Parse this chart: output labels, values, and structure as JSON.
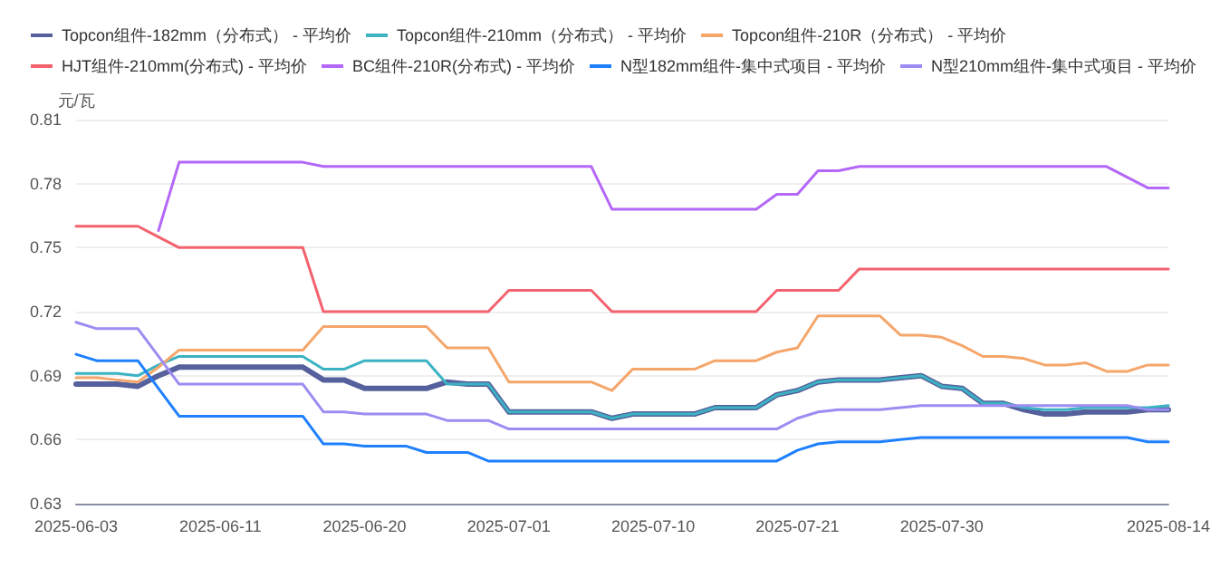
{
  "chart_data": {
    "type": "line",
    "ylabel": "元/瓦",
    "ylim": [
      0.63,
      0.81
    ],
    "yticks": [
      0.63,
      0.66,
      0.69,
      0.72,
      0.75,
      0.78,
      0.81
    ],
    "grid": "y",
    "legend": "top",
    "marker": "none",
    "line_style": "solid",
    "categories": [
      "2025-06-03",
      null,
      null,
      null,
      null,
      null,
      null,
      "2025-06-11",
      null,
      null,
      null,
      null,
      null,
      null,
      "2025-06-20",
      null,
      null,
      null,
      null,
      null,
      null,
      "2025-07-01",
      null,
      null,
      null,
      null,
      null,
      null,
      "2025-07-10",
      null,
      null,
      null,
      null,
      null,
      null,
      "2025-07-21",
      null,
      null,
      null,
      null,
      null,
      null,
      "2025-07-30",
      null,
      null,
      null,
      null,
      null,
      null,
      null,
      null,
      null,
      null,
      "2025-08-14"
    ],
    "series": [
      {
        "name": "Topcon组件-182mm（分布式） - 平均价",
        "color": "#55609c",
        "values": [
          0.686,
          0.686,
          0.686,
          0.685,
          0.69,
          0.694,
          0.694,
          0.694,
          0.694,
          0.694,
          0.694,
          0.694,
          0.688,
          0.688,
          0.684,
          0.684,
          0.684,
          0.684,
          0.687,
          0.686,
          0.686,
          0.673,
          0.673,
          0.673,
          0.673,
          0.673,
          0.67,
          0.672,
          0.672,
          0.672,
          0.672,
          0.675,
          0.675,
          0.675,
          0.681,
          0.683,
          0.687,
          0.688,
          0.688,
          0.688,
          0.689,
          0.69,
          0.685,
          0.684,
          0.677,
          0.677,
          0.674,
          0.672,
          0.672,
          0.673,
          0.673,
          0.673,
          0.674,
          0.674
        ]
      },
      {
        "name": "Topcon组件-210mm（分布式） - 平均价",
        "color": "#3bb3c3",
        "values": [
          0.691,
          0.691,
          0.691,
          0.69,
          0.695,
          0.699,
          0.699,
          0.699,
          0.699,
          0.699,
          0.699,
          0.699,
          0.693,
          0.693,
          0.697,
          0.697,
          0.697,
          0.697,
          0.686,
          0.686,
          0.686,
          0.673,
          0.673,
          0.673,
          0.673,
          0.673,
          0.67,
          0.672,
          0.672,
          0.672,
          0.672,
          0.675,
          0.675,
          0.675,
          0.681,
          0.683,
          0.687,
          0.688,
          0.688,
          0.688,
          0.689,
          0.69,
          0.685,
          0.684,
          0.677,
          0.677,
          0.675,
          0.674,
          0.674,
          0.675,
          0.675,
          0.675,
          0.675,
          0.676
        ]
      },
      {
        "name": "Topcon组件-210R（分布式） - 平均价",
        "color": "#f5a66a",
        "values": [
          0.689,
          0.689,
          0.688,
          0.687,
          0.694,
          0.702,
          0.702,
          0.702,
          0.702,
          0.702,
          0.702,
          0.702,
          0.713,
          0.713,
          0.713,
          0.713,
          0.713,
          0.713,
          0.703,
          0.703,
          0.703,
          0.687,
          0.687,
          0.687,
          0.687,
          0.687,
          0.683,
          0.693,
          0.693,
          0.693,
          0.693,
          0.697,
          0.697,
          0.697,
          0.701,
          0.703,
          0.718,
          0.718,
          0.718,
          0.718,
          0.709,
          0.709,
          0.708,
          0.704,
          0.699,
          0.699,
          0.698,
          0.695,
          0.695,
          0.696,
          0.692,
          0.692,
          0.695,
          0.695
        ]
      },
      {
        "name": "HJT组件-210mm(分布式) - 平均价",
        "color": "#f2636e",
        "values": [
          0.76,
          0.76,
          0.76,
          0.76,
          0.755,
          0.75,
          0.75,
          0.75,
          0.75,
          0.75,
          0.75,
          0.75,
          0.72,
          0.72,
          0.72,
          0.72,
          0.72,
          0.72,
          0.72,
          0.72,
          0.72,
          0.73,
          0.73,
          0.73,
          0.73,
          0.73,
          0.72,
          0.72,
          0.72,
          0.72,
          0.72,
          0.72,
          0.72,
          0.72,
          0.73,
          0.73,
          0.73,
          0.73,
          0.74,
          0.74,
          0.74,
          0.74,
          0.74,
          0.74,
          0.74,
          0.74,
          0.74,
          0.74,
          0.74,
          0.74,
          0.74,
          0.74,
          0.74,
          0.74
        ]
      },
      {
        "name": "BC组件-210R(分布式) - 平均价",
        "color": "#b467f8",
        "values": [
          null,
          null,
          null,
          null,
          0.758,
          0.79,
          0.79,
          0.79,
          0.79,
          0.79,
          0.79,
          0.79,
          0.788,
          0.788,
          0.788,
          0.788,
          0.788,
          0.788,
          0.788,
          0.788,
          0.788,
          0.788,
          0.788,
          0.788,
          0.788,
          0.788,
          0.768,
          0.768,
          0.768,
          0.768,
          0.768,
          0.768,
          0.768,
          0.768,
          0.775,
          0.775,
          0.786,
          0.786,
          0.788,
          0.788,
          0.788,
          0.788,
          0.788,
          0.788,
          0.788,
          0.788,
          0.788,
          0.788,
          0.788,
          0.788,
          0.788,
          0.783,
          0.778,
          0.778
        ]
      },
      {
        "name": "N型182mm组件-集中式项目 - 平均价",
        "color": "#1e80ff",
        "values": [
          0.7,
          0.697,
          0.697,
          0.697,
          0.684,
          0.671,
          0.671,
          0.671,
          0.671,
          0.671,
          0.671,
          0.671,
          0.658,
          0.658,
          0.657,
          0.657,
          0.657,
          0.654,
          0.654,
          0.654,
          0.65,
          0.65,
          0.65,
          0.65,
          0.65,
          0.65,
          0.65,
          0.65,
          0.65,
          0.65,
          0.65,
          0.65,
          0.65,
          0.65,
          0.65,
          0.655,
          0.658,
          0.659,
          0.659,
          0.659,
          0.66,
          0.661,
          0.661,
          0.661,
          0.661,
          0.661,
          0.661,
          0.661,
          0.661,
          0.661,
          0.661,
          0.661,
          0.659,
          0.659
        ]
      },
      {
        "name": "N型210mm组件-集中式项目 - 平均价",
        "color": "#9d8cf2",
        "values": [
          0.715,
          0.712,
          0.712,
          0.712,
          0.699,
          0.686,
          0.686,
          0.686,
          0.686,
          0.686,
          0.686,
          0.686,
          0.673,
          0.673,
          0.672,
          0.672,
          0.672,
          0.672,
          0.669,
          0.669,
          0.669,
          0.665,
          0.665,
          0.665,
          0.665,
          0.665,
          0.665,
          0.665,
          0.665,
          0.665,
          0.665,
          0.665,
          0.665,
          0.665,
          0.665,
          0.67,
          0.673,
          0.674,
          0.674,
          0.674,
          0.675,
          0.676,
          0.676,
          0.676,
          0.676,
          0.676,
          0.676,
          0.676,
          0.676,
          0.676,
          0.676,
          0.676,
          0.674,
          0.674
        ]
      }
    ]
  }
}
